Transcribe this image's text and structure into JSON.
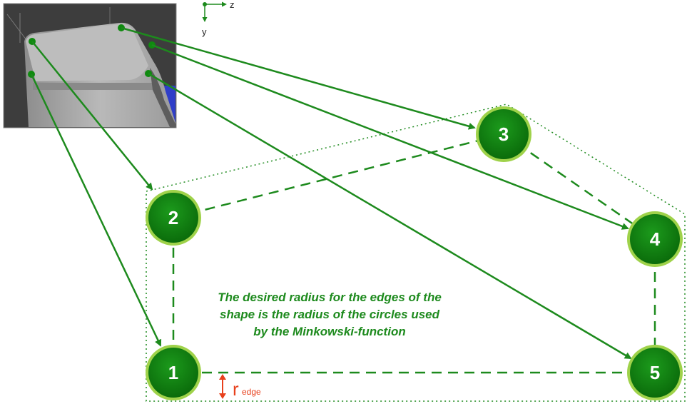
{
  "axes": {
    "horizontal": "z",
    "vertical": "y"
  },
  "caption": {
    "line1": "The desired radius for the edges of the",
    "line2": "shape is the radius of the circles used",
    "line3": "by the Minkowski-function"
  },
  "dimension": {
    "symbol": "r",
    "subscript": "edge"
  },
  "nodes": [
    {
      "id": "1",
      "label": "1"
    },
    {
      "id": "2",
      "label": "2"
    },
    {
      "id": "3",
      "label": "3"
    },
    {
      "id": "4",
      "label": "4"
    },
    {
      "id": "5",
      "label": "5"
    }
  ],
  "colors": {
    "green": "#1d8a1d",
    "node_fill": "#0f7f0f",
    "node_ring": "#9fd24a",
    "dimension": "#e8401c",
    "render_bg": "#3d3d3d",
    "render_accent": "#2f3ec8"
  }
}
